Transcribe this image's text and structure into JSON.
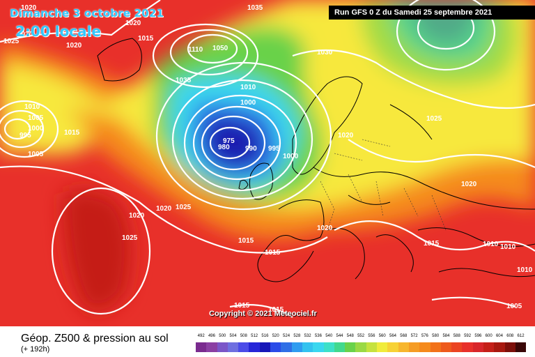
{
  "header": {
    "date": "Dimanche 3 octobre 2021",
    "time": "2:00 locale",
    "run": "Run GFS 0 Z du Samedi 25 septembre 2021"
  },
  "map": {
    "pressure_labels": [
      "1020",
      "1025",
      "1020",
      "1035",
      "1020",
      "1030",
      "1015",
      "1110",
      "1050",
      "1035",
      "1030",
      "1010",
      "1005",
      "1000",
      "1010",
      "1000",
      "995",
      "1015",
      "1005",
      "975",
      "980",
      "990",
      "995",
      "1000",
      "1025",
      "1025",
      "1020",
      "1020",
      "1020",
      "1025",
      "1020",
      "1015",
      "1015",
      "1020",
      "1015",
      "1010",
      "1010",
      "1010",
      "1005",
      "1015",
      "1015"
    ],
    "colors": {
      "red": "#e8302a",
      "orange": "#f58a1c",
      "yellow": "#f7e83c",
      "green": "#69d24a",
      "cyan": "#3ad7ef",
      "blue": "#2f47e6",
      "navy": "#1a1ab0",
      "darkred": "#c51f18"
    }
  },
  "copyright": "Copyright © 2021 Meteociel.fr",
  "footer": {
    "title": "Géop. Z500 & pression au sol",
    "subtitle": "(+ 192h)",
    "scale_labels": [
      "492",
      "496",
      "500",
      "504",
      "508",
      "512",
      "516",
      "520",
      "524",
      "528",
      "532",
      "536",
      "540",
      "544",
      "548",
      "552",
      "556",
      "560",
      "564",
      "568",
      "572",
      "576",
      "580",
      "584",
      "588",
      "592",
      "596",
      "600",
      "604",
      "608",
      "612"
    ],
    "scale_colors": [
      "#7a2b8f",
      "#8b3fa3",
      "#7b56c8",
      "#6f6fe0",
      "#4b4be8",
      "#2626d8",
      "#1717b8",
      "#2a4be8",
      "#2f6fe6",
      "#2f9cf0",
      "#33c2ef",
      "#3ad7ef",
      "#3de0c8",
      "#41d98e",
      "#69d24a",
      "#9ad944",
      "#c6e23e",
      "#f0ec3c",
      "#f7d236",
      "#f7b62e",
      "#f59c25",
      "#f58a1c",
      "#f27219",
      "#ee5a1c",
      "#eb4422",
      "#e8302a",
      "#d8262a",
      "#c51f18",
      "#a8180f",
      "#7d0f0a",
      "#3a0707"
    ]
  }
}
